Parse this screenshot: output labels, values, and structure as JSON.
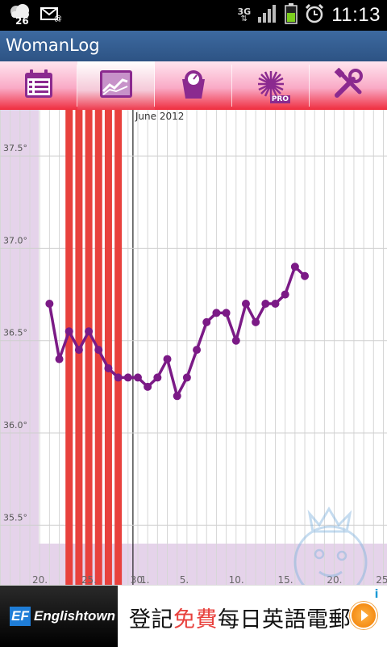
{
  "status_bar": {
    "weather_temp": "26",
    "network": "3G",
    "time": "11:13"
  },
  "app": {
    "title": "WomanLog"
  },
  "tabs": [
    {
      "name": "calendar",
      "icon": "calendar-icon",
      "active": false
    },
    {
      "name": "chart",
      "icon": "chart-icon",
      "active": true
    },
    {
      "name": "weight",
      "icon": "scale-icon",
      "active": false
    },
    {
      "name": "pro",
      "icon": "pro-icon",
      "label": "PRO",
      "active": false
    },
    {
      "name": "settings",
      "icon": "tools-icon",
      "active": false
    }
  ],
  "chart_data": {
    "type": "line",
    "month_label": "June 2012",
    "ylim": [
      35.3,
      37.75
    ],
    "y_ticks": [
      35.5,
      36.0,
      36.5,
      37.0,
      37.5
    ],
    "y_tick_labels": [
      "35.5°",
      "36.0°",
      "36.5°",
      "37.0°",
      "37.5°"
    ],
    "x_tick_labels": [
      {
        "day": 20,
        "label": "20."
      },
      {
        "day": 25,
        "label": "25."
      },
      {
        "day": 30,
        "label": "30."
      },
      {
        "day": 31,
        "label": "1."
      },
      {
        "day": 35,
        "label": "5."
      },
      {
        "day": 40,
        "label": "10."
      },
      {
        "day": 45,
        "label": "15."
      },
      {
        "day": 50,
        "label": "20."
      },
      {
        "day": 55,
        "label": "25"
      }
    ],
    "xlim": [
      16.6,
      56.0
    ],
    "period_days": [
      24,
      25,
      26,
      27,
      28,
      29
    ],
    "series": [
      {
        "color": "#7b1a86",
        "x": [
          22,
          23,
          24,
          25,
          26,
          27,
          28,
          29,
          30,
          31,
          32,
          33,
          34,
          35,
          36,
          37,
          38,
          39,
          40,
          41,
          42,
          43,
          44,
          45,
          46,
          47,
          48,
          49,
          50
        ],
        "values": [
          36.7,
          36.4,
          36.55,
          36.45,
          36.55,
          36.45,
          36.35,
          36.3,
          36.3,
          36.3,
          36.25,
          36.3,
          36.4,
          36.2,
          36.3,
          36.45,
          36.6,
          36.65,
          36.65,
          36.5,
          36.7,
          36.6,
          36.7,
          36.7,
          36.75,
          36.9,
          36.85,
          null,
          null
        ]
      }
    ]
  },
  "ad": {
    "ef_logo": "EF",
    "brand": "Englishtown",
    "text_before": "登記",
    "text_highlight": "免費",
    "text_after": "每日英語電郵",
    "info": "i"
  },
  "colors": {
    "accent": "#2d5384",
    "line": "#7b1a86",
    "period": "#e8413d",
    "lavender": "#e5d3ea"
  }
}
